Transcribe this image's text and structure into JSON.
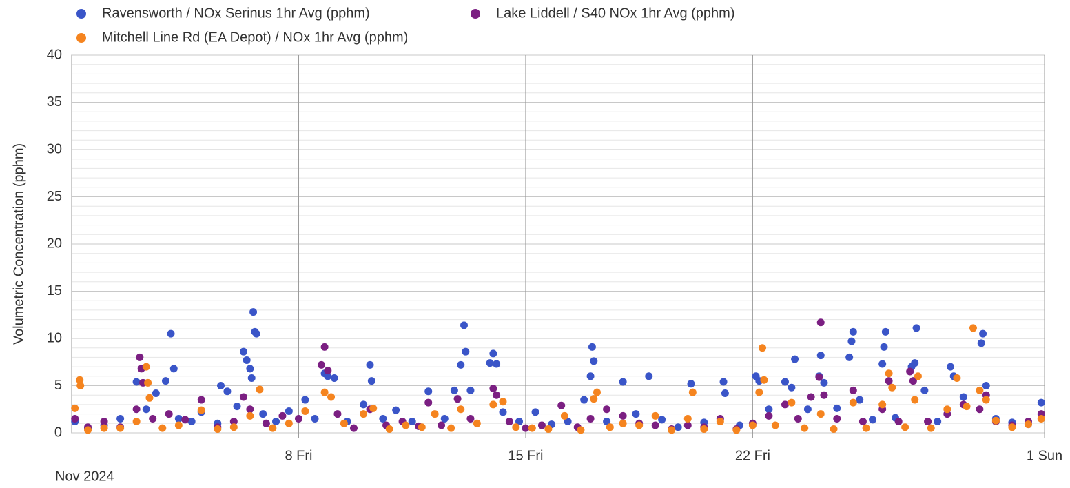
{
  "chart_data": {
    "type": "scatter",
    "y_label": "Volumetric Concentration (pphm)",
    "x_caption": "Nov 2024",
    "xlim": [
      1,
      31
    ],
    "xticks": [
      {
        "value": 8,
        "label": "8 Fri"
      },
      {
        "value": 15,
        "label": "15 Fri"
      },
      {
        "value": 22,
        "label": "22 Fri"
      },
      {
        "value": 31,
        "label": "1 Sun"
      }
    ],
    "ylim": [
      0,
      40
    ],
    "yticks": [
      0,
      5,
      10,
      15,
      20,
      25,
      30,
      35,
      40
    ],
    "grid": true,
    "series": [
      {
        "name": "Ravensworth / NOx Serinus 1hr Avg (pphm)",
        "color": "#3a55c8",
        "x": [
          1.1,
          1.5,
          2,
          2.5,
          3,
          3.3,
          3.6,
          3.9,
          4.06,
          4.15,
          4.3,
          4.7,
          5,
          5.5,
          5.6,
          5.8,
          6.1,
          6.3,
          6.4,
          6.5,
          6.55,
          6.6,
          6.65,
          6.7,
          6.9,
          7.3,
          7.7,
          8.2,
          8.5,
          8.8,
          8.9,
          9.1,
          9.5,
          10,
          10.2,
          10.25,
          10.6,
          11,
          11.5,
          12,
          12.5,
          12.8,
          13.0,
          13.1,
          13.15,
          13.3,
          13.9,
          14.0,
          14.1,
          14.3,
          14.8,
          15.3,
          15.8,
          16.3,
          16.8,
          17.0,
          17.05,
          17.1,
          17.5,
          18,
          18.4,
          18.8,
          19.2,
          19.7,
          20.1,
          20.5,
          21.1,
          21.15,
          21.6,
          22.1,
          22.2,
          22.5,
          23,
          23.2,
          23.3,
          23.7,
          24.05,
          24.1,
          24.2,
          24.6,
          24.98,
          25.05,
          25.1,
          25.3,
          25.7,
          26.0,
          26.05,
          26.1,
          26.4,
          26.9,
          27.0,
          27.05,
          27.3,
          27.7,
          28.1,
          28.2,
          28.5,
          29.05,
          29.1,
          29.2,
          29.5,
          30,
          30.5,
          30.9
        ],
        "values": [
          1.2,
          0.5,
          0.8,
          1.5,
          5.4,
          2.5,
          4.2,
          5.5,
          10.5,
          6.8,
          1.5,
          1.2,
          2.2,
          1.0,
          5,
          4.4,
          2.8,
          8.6,
          7.7,
          6.8,
          5.8,
          12.8,
          10.7,
          10.5,
          2,
          1.2,
          2.3,
          3.5,
          1.5,
          6.3,
          6,
          5.8,
          1.2,
          3,
          7.2,
          5.5,
          1.5,
          2.4,
          1.2,
          4.4,
          1.5,
          4.5,
          7.2,
          11.4,
          8.6,
          4.5,
          7.4,
          8.4,
          7.3,
          2.2,
          1.2,
          2.2,
          0.9,
          1.2,
          3.5,
          6,
          9.1,
          7.6,
          1.2,
          5.4,
          2,
          6,
          1.4,
          0.6,
          5.2,
          1.1,
          5.4,
          4.2,
          0.8,
          6,
          5.5,
          2.5,
          5.4,
          4.8,
          7.8,
          2.5,
          6,
          8.2,
          5.3,
          2.6,
          8,
          9.7,
          10.7,
          3.5,
          1.4,
          7.3,
          9.1,
          10.7,
          1.6,
          7,
          7.4,
          11.1,
          4.5,
          1.2,
          7,
          6,
          3.8,
          9.5,
          10.5,
          5,
          1.5,
          1.1,
          0.9,
          3.2
        ]
      },
      {
        "name": "Lake Liddell / S40 NOx 1hr Avg (pphm)",
        "color": "#7b1f82",
        "x": [
          1.1,
          1.5,
          2,
          2.5,
          3,
          3.1,
          3.15,
          3.2,
          3.5,
          4,
          4.5,
          5,
          5.5,
          6,
          6.3,
          6.5,
          7,
          7.5,
          8,
          8.7,
          8.8,
          8.9,
          9.2,
          9.7,
          10.2,
          10.7,
          11.2,
          11.7,
          12,
          12.4,
          12.9,
          13.3,
          14,
          14.1,
          14.5,
          15,
          15.5,
          16.1,
          16.6,
          17,
          17.5,
          18,
          18.5,
          19,
          19.5,
          20,
          20.5,
          21,
          21.5,
          22,
          22.5,
          23,
          23.4,
          23.8,
          24.05,
          24.1,
          24.2,
          24.6,
          25.1,
          25.4,
          26,
          26.2,
          26.5,
          26.85,
          26.95,
          27.4,
          28,
          28.5,
          29,
          29.2,
          29.5,
          30,
          30.5,
          30.9
        ],
        "values": [
          1.5,
          0.6,
          1.2,
          0.6,
          2.5,
          8,
          6.8,
          5.3,
          1.5,
          2,
          1.4,
          3.5,
          0.6,
          1.2,
          3.8,
          2.5,
          1,
          1.8,
          1.5,
          7.2,
          9.1,
          6.6,
          2,
          0.5,
          2.5,
          0.8,
          1.2,
          0.7,
          3.2,
          0.8,
          3.6,
          1.5,
          4.7,
          4,
          1.2,
          0.5,
          0.8,
          2.9,
          0.6,
          1.5,
          2.5,
          1.8,
          1,
          0.8,
          0.4,
          0.8,
          0.6,
          1.5,
          0.4,
          1,
          1.8,
          3,
          1.5,
          3.8,
          5.9,
          11.7,
          4,
          1.5,
          4.5,
          1.2,
          2.5,
          5.5,
          1.2,
          6.5,
          5.5,
          1.2,
          2,
          3,
          2.5,
          4,
          1.2,
          0.8,
          1.2,
          2
        ]
      },
      {
        "name": "Mitchell Line Rd (EA Depot) / NOx 1hr Avg (pphm)",
        "color": "#f5841f",
        "x": [
          1.1,
          1.25,
          1.27,
          1.5,
          2,
          2.5,
          3,
          3.3,
          3.35,
          3.4,
          3.8,
          4.3,
          5,
          5.5,
          6,
          6.5,
          6.8,
          7.2,
          7.7,
          8.2,
          8.8,
          9,
          9.4,
          10,
          10.3,
          10.8,
          11.3,
          11.8,
          12.2,
          12.7,
          13,
          13.5,
          14,
          14.3,
          14.7,
          15.2,
          15.7,
          16.2,
          16.7,
          17.1,
          17.2,
          17.6,
          18,
          18.5,
          19,
          19.5,
          20,
          20.15,
          20.5,
          21,
          21.5,
          22,
          22.2,
          22.3,
          22.35,
          22.7,
          23.2,
          23.6,
          24.1,
          24.5,
          25.1,
          25.5,
          26,
          26.2,
          26.3,
          26.7,
          27,
          27.1,
          27.5,
          28,
          28.3,
          28.6,
          28.8,
          29,
          29.2,
          29.5,
          30,
          30.5,
          30.9
        ],
        "values": [
          2.6,
          5.6,
          5,
          0.3,
          0.5,
          0.5,
          1.2,
          7,
          5.3,
          3.7,
          0.5,
          0.8,
          2.4,
          0.4,
          0.6,
          1.8,
          4.6,
          0.5,
          1,
          2.3,
          4.3,
          3.8,
          1,
          2,
          2.6,
          0.4,
          0.8,
          0.6,
          2,
          0.5,
          2.5,
          1,
          3,
          3.3,
          0.6,
          0.5,
          0.4,
          1.8,
          0.3,
          3.6,
          4.3,
          0.6,
          1,
          0.8,
          1.8,
          0.3,
          1.5,
          4.3,
          0.4,
          1.2,
          0.3,
          0.8,
          4.3,
          9,
          5.6,
          0.8,
          3.2,
          0.5,
          2,
          0.4,
          3.2,
          0.5,
          3,
          6.3,
          4.8,
          0.6,
          3.5,
          6,
          0.5,
          2.5,
          5.8,
          2.8,
          11.1,
          4.5,
          3.5,
          1.3,
          0.6,
          0.9,
          1.5
        ]
      }
    ]
  }
}
